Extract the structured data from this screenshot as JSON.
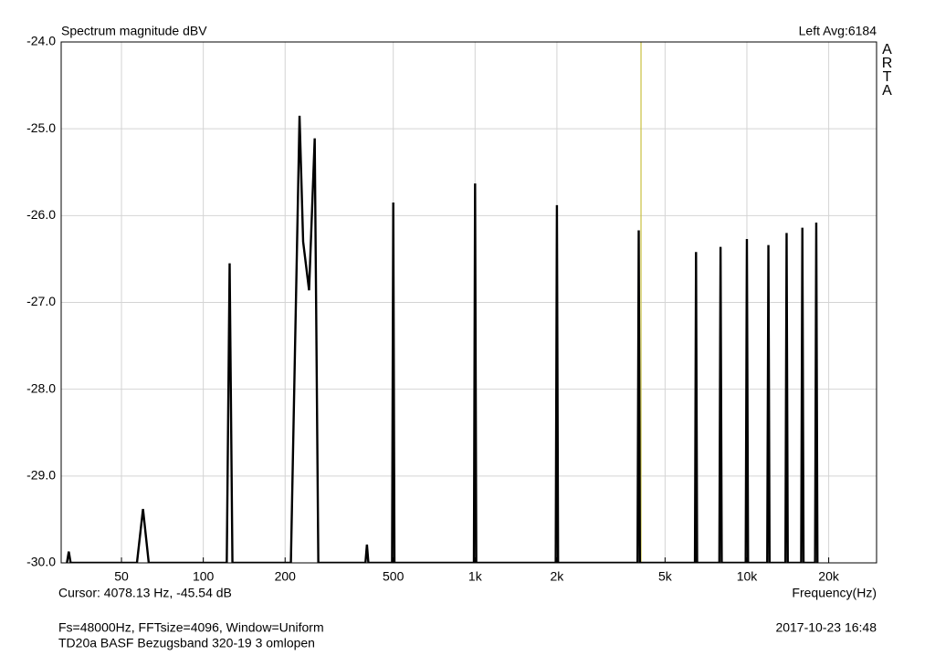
{
  "chart_data": {
    "type": "line",
    "title": "Spectrum magnitude dBV",
    "channel_info": "Left  Avg:6184",
    "brand": "ARTA",
    "x_label": "Frequency(Hz)",
    "cursor_text": "Cursor: 4078.13 Hz, -45.54 dB",
    "settings_text": "Fs=48000Hz, FFTsize=4096, Window=Uniform",
    "description": "TD20a BASF Bezugsband 320-19 3 omlopen",
    "timestamp": "2017-10-23  16:48",
    "x_scale": "log",
    "xlim": [
      30,
      30000
    ],
    "ylim": [
      -30,
      -24
    ],
    "xticks": [
      50,
      100,
      200,
      500,
      {
        "value": 1000,
        "label": "1k"
      },
      {
        "value": 2000,
        "label": "2k"
      },
      {
        "value": 5000,
        "label": "5k"
      },
      {
        "value": 10000,
        "label": "10k"
      },
      {
        "value": 20000,
        "label": "20k"
      }
    ],
    "yticks": [
      {
        "value": -30,
        "label": "-30.0"
      },
      {
        "value": -29,
        "label": "-29.0"
      },
      {
        "value": -28,
        "label": "-28.0"
      },
      {
        "value": -27,
        "label": "-27.0"
      },
      {
        "value": -26,
        "label": "-26.0"
      },
      {
        "value": -25,
        "label": "-25.0"
      },
      {
        "value": -24,
        "label": "-24.0"
      }
    ],
    "grid": true,
    "cursor": {
      "x": 4078.13,
      "color": "#c8c040"
    },
    "series": [
      {
        "name": "Left",
        "color": "#000000",
        "x": [
          31.5,
          32,
          32.5,
          57,
          60,
          63,
          122,
          125,
          128,
          210,
          226,
          233,
          245,
          257,
          265,
          395,
          400,
          405,
          495,
          500,
          505,
          990,
          1000,
          1010,
          1980,
          2000,
          2020,
          3960,
          4000,
          4040,
          6440,
          6500,
          6560,
          7920,
          8000,
          8080,
          9900,
          10000,
          10100,
          11880,
          12000,
          12120,
          13860,
          14000,
          14140,
          15840,
          16000,
          16160,
          17820,
          18000,
          18180
        ],
        "values": [
          -30,
          -29.87,
          -30,
          -30,
          -29.38,
          -30,
          -30,
          -26.55,
          -30,
          -30,
          -24.85,
          -26.3,
          -26.86,
          -25.11,
          -30,
          -30,
          -29.79,
          -30,
          -30,
          -25.85,
          -30,
          -30,
          -25.63,
          -30,
          -30,
          -25.88,
          -30,
          -30,
          -26.17,
          -30,
          -30,
          -26.42,
          -30,
          -30,
          -26.36,
          -30,
          -30,
          -26.27,
          -30,
          -30,
          -26.34,
          -30,
          -30,
          -26.2,
          -30,
          -30,
          -26.14,
          -30,
          -30,
          -26.08,
          -30
        ]
      }
    ]
  }
}
